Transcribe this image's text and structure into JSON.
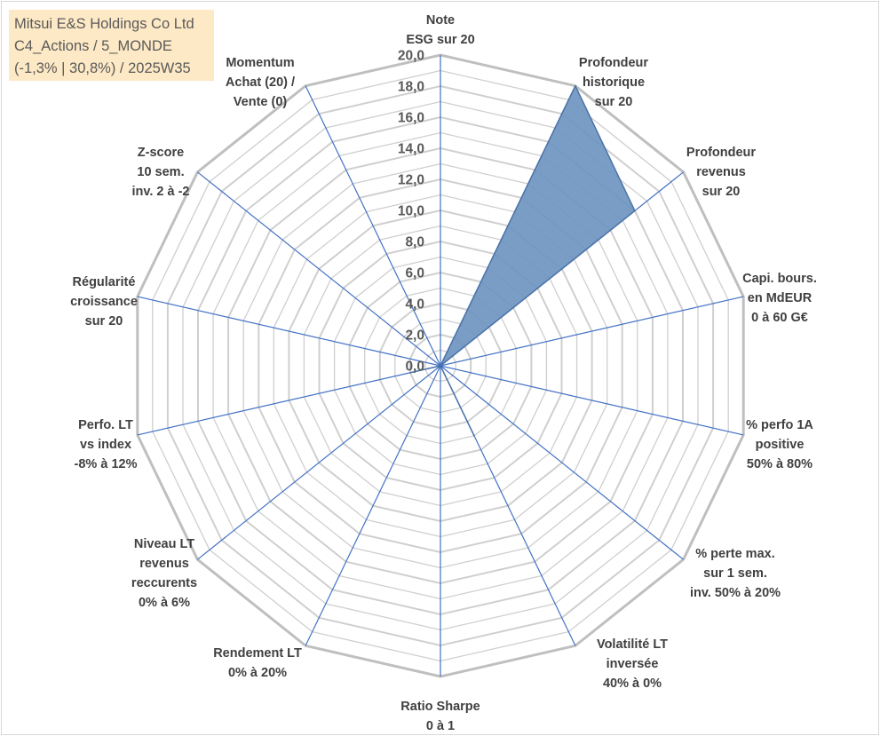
{
  "title_box": {
    "line1": "Mitsui E&S Holdings Co Ltd",
    "line2": "C4_Actions / 5_MONDE",
    "line3": "(-1,3% | 30,8%) / 2025W35"
  },
  "colors": {
    "grid": "#bfbfbf",
    "spokes": "#4472c4",
    "fill": "#6f95c1",
    "title_bg": "#fde9c5"
  },
  "chart_data": {
    "type": "radar",
    "rlim": [
      0,
      20
    ],
    "rticks": [
      "0,0",
      "2,0",
      "4,0",
      "6,0",
      "8,0",
      "10,0",
      "12,0",
      "14,0",
      "16,0",
      "18,0",
      "20,0"
    ],
    "categories": [
      [
        "Note",
        "ESG sur 20"
      ],
      [
        "Profondeur",
        "historique",
        "sur 20"
      ],
      [
        "Profondeur",
        "revenus",
        "sur 20"
      ],
      [
        "Capi. bours.",
        "en MdEUR",
        "0 à 60 G€"
      ],
      [
        "% perfo 1A",
        "positive",
        "50% à 80%"
      ],
      [
        "% perte max.",
        "sur 1 sem.",
        "inv. 50% à 20%"
      ],
      [
        "Volatilité LT",
        "inversée",
        "40% à 0%"
      ],
      [
        "Ratio Sharpe",
        "0 à 1"
      ],
      [
        "Rendement LT",
        "0% à 20%"
      ],
      [
        "Niveau LT",
        "revenus",
        "reccurents",
        "0% à 6%"
      ],
      [
        "Perfo. LT",
        "vs index",
        "-8% à 12%"
      ],
      [
        "Régularité",
        "croissance",
        "sur 20"
      ],
      [
        "Z-score",
        "10 sem.",
        "inv. 2 à -2"
      ],
      [
        "Momentum",
        "Achat (20) /",
        "Vente (0)"
      ]
    ],
    "values": [
      0,
      20,
      16,
      0,
      0,
      0,
      5,
      0,
      0,
      0,
      2,
      0,
      0,
      0
    ],
    "grid": true,
    "legend": "none"
  }
}
